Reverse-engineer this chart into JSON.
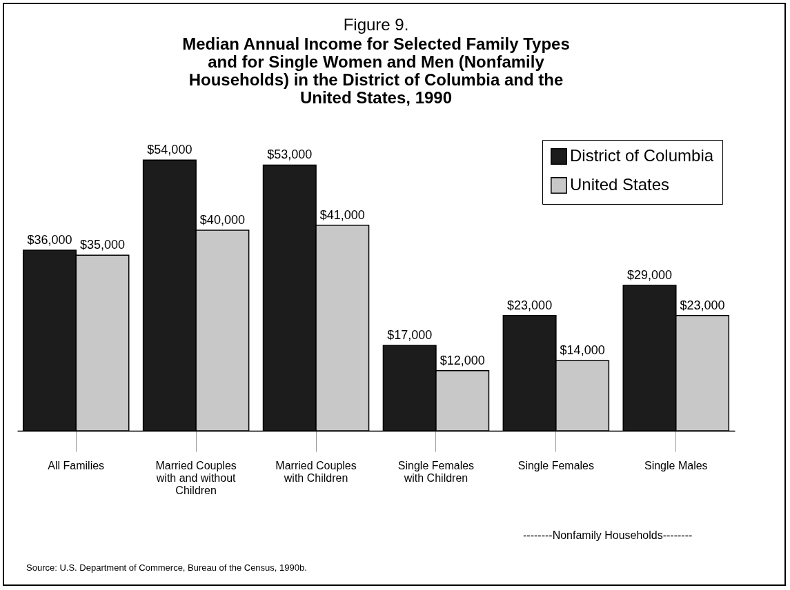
{
  "chart_data": {
    "type": "bar",
    "title": "Figure 9.",
    "subtitle": "Median Annual Income for Selected Family Types and for Single Women and Men (Nonfamily Households) in the District of Columbia and the United States, 1990",
    "categories": [
      "All Families",
      "Married Couples with and without Children",
      "Married Couples with Children",
      "Single Females with Children",
      "Single Females",
      "Single Males"
    ],
    "series": [
      {
        "name": "District of Columbia",
        "color": "#1c1c1c",
        "values": [
          36000,
          54000,
          53000,
          17000,
          23000,
          29000
        ],
        "value_labels": [
          "$36,000",
          "$54,000",
          "$53,000",
          "$17,000",
          "$23,000",
          "$29,000"
        ]
      },
      {
        "name": "United States",
        "color": "#c8c8c8",
        "values": [
          35000,
          40000,
          41000,
          12000,
          14000,
          23000
        ],
        "value_labels": [
          "$35,000",
          "$40,000",
          "$41,000",
          "$12,000",
          "$14,000",
          "$23,000"
        ]
      }
    ],
    "legend": "top right",
    "annotations": [
      "--------Nonfamily Households--------",
      "Source: U.S. Department of Commerce, Bureau of the Census, 1990b."
    ]
  }
}
